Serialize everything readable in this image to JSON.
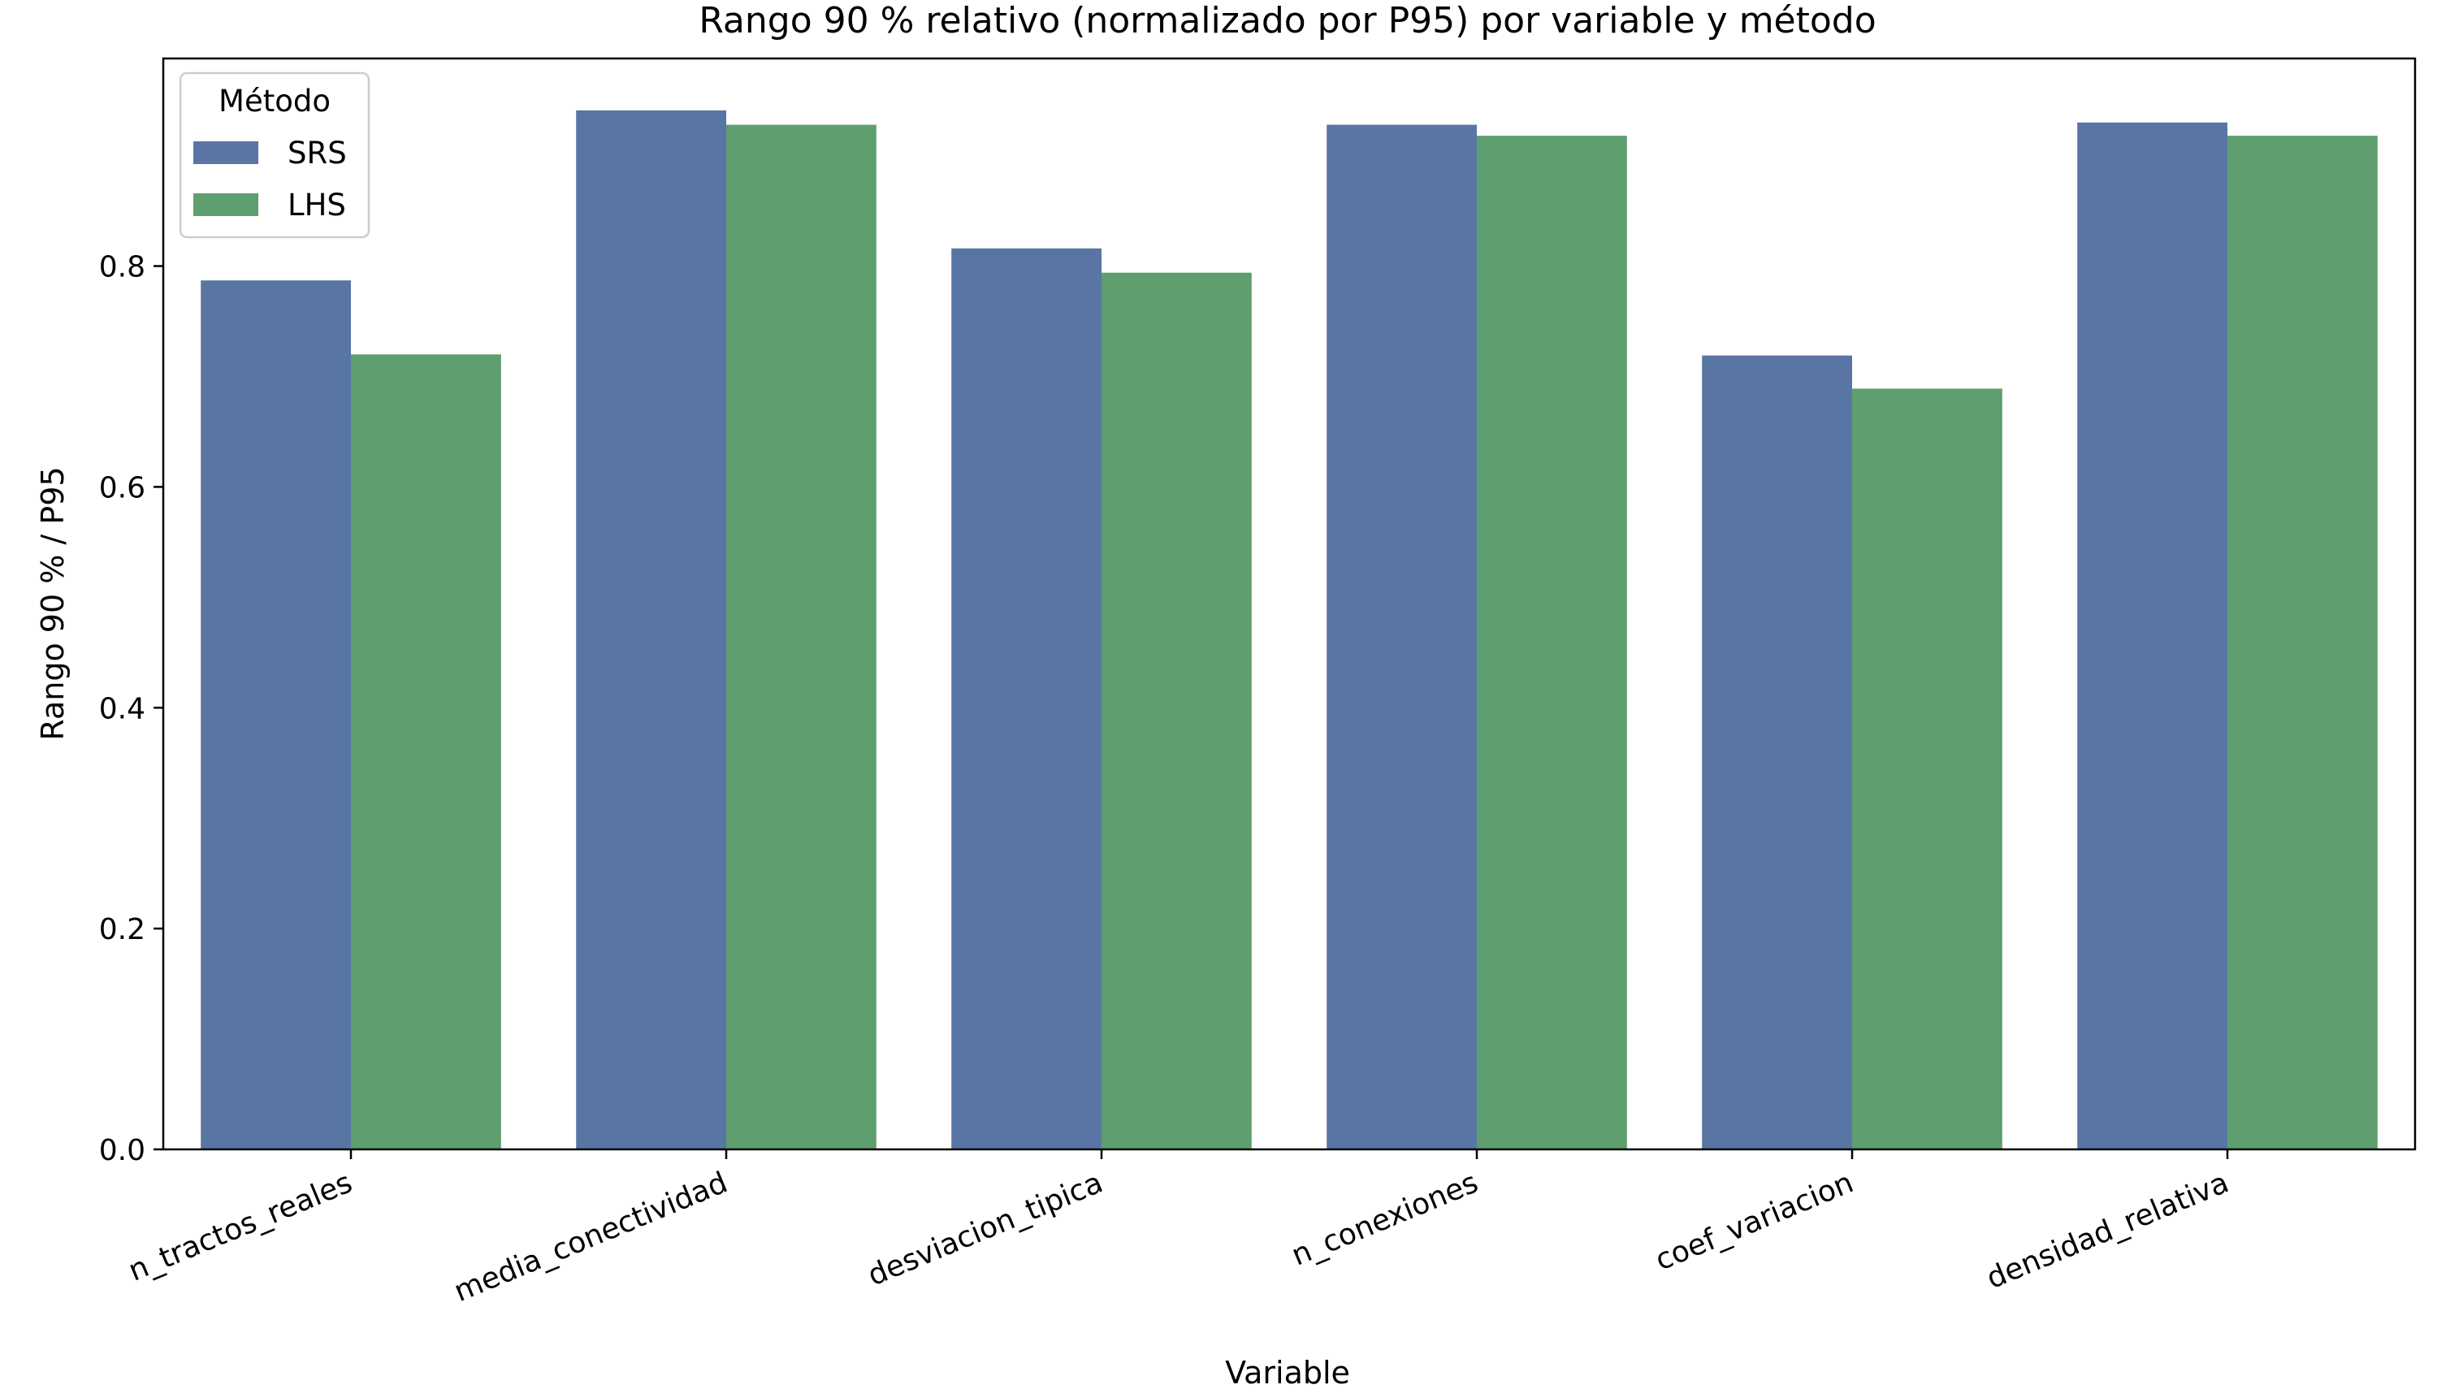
{
  "chart_data": {
    "type": "bar",
    "title": "Rango 90 % relativo (normalizado por P95) por variable y método",
    "xlabel": "Variable",
    "ylabel": "Rango 90 % / P95",
    "categories": [
      "n_tractos_reales",
      "media_conectividad",
      "desviacion_tipica",
      "n_conexiones",
      "coef_variacion",
      "densidad_relativa"
    ],
    "series": [
      {
        "name": "SRS",
        "color": "#5975a4",
        "values": [
          0.787,
          0.941,
          0.816,
          0.928,
          0.719,
          0.93
        ]
      },
      {
        "name": "LHS",
        "color": "#5f9e6e",
        "values": [
          0.72,
          0.928,
          0.794,
          0.918,
          0.689,
          0.918
        ]
      }
    ],
    "ylim": [
      0,
      0.988
    ],
    "yticks": [
      0.0,
      0.2,
      0.4,
      0.6,
      0.8
    ],
    "ytick_labels": [
      "0.0",
      "0.2",
      "0.4",
      "0.6",
      "0.8"
    ],
    "grid": false,
    "legend": {
      "title": "Método",
      "placement": "top-left"
    }
  }
}
